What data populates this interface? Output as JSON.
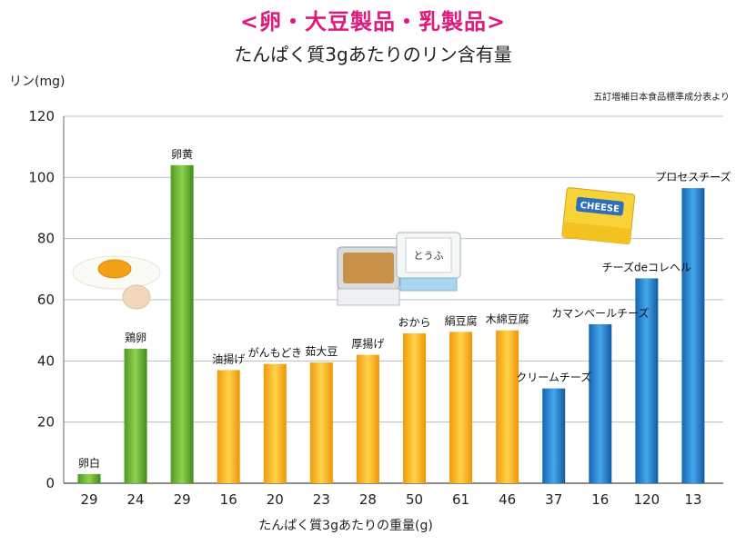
{
  "header": {
    "title": "<卵・大豆製品・乳製品>",
    "subtitle": "たんぱく質3gあたりのリン含有量"
  },
  "source": "五訂増補日本食品標準成分表より",
  "colors": {
    "egg": "#6ab536",
    "soy": "#f6b01b",
    "dairy": "#1f7fcf",
    "grid": "#bdbdbd",
    "axis": "#666666"
  },
  "chart_data": {
    "type": "bar",
    "ylabel": "リン(mg)",
    "xlabel": "たんぱく質3gあたりの重量(g)",
    "ylim": [
      0,
      120
    ],
    "yticks": [
      0,
      20,
      40,
      60,
      80,
      100,
      120
    ],
    "grid": true,
    "categories": [
      "卵白",
      "鶏卵",
      "卵黄",
      "油揚げ",
      "がんもどき",
      "茹大豆",
      "厚揚げ",
      "おから",
      "絹豆腐",
      "木綿豆腐",
      "クリームチーズ",
      "カマンベールチーズ",
      "チーズdeコレヘル",
      "プロセスチーズ"
    ],
    "values": [
      3,
      44,
      104,
      37,
      39,
      39.5,
      42,
      49,
      49.5,
      50,
      31,
      52,
      67,
      96.5
    ],
    "groups": [
      "egg",
      "egg",
      "egg",
      "soy",
      "soy",
      "soy",
      "soy",
      "soy",
      "soy",
      "soy",
      "dairy",
      "dairy",
      "dairy",
      "dairy"
    ],
    "x_tick_labels": [
      "29",
      "24",
      "29",
      "16",
      "20",
      "23",
      "28",
      "50",
      "61",
      "46",
      "37",
      "16",
      "120",
      "13"
    ]
  },
  "illustrations": {
    "cheese_label": "CHEESE",
    "tofu_label": "とうふ"
  }
}
